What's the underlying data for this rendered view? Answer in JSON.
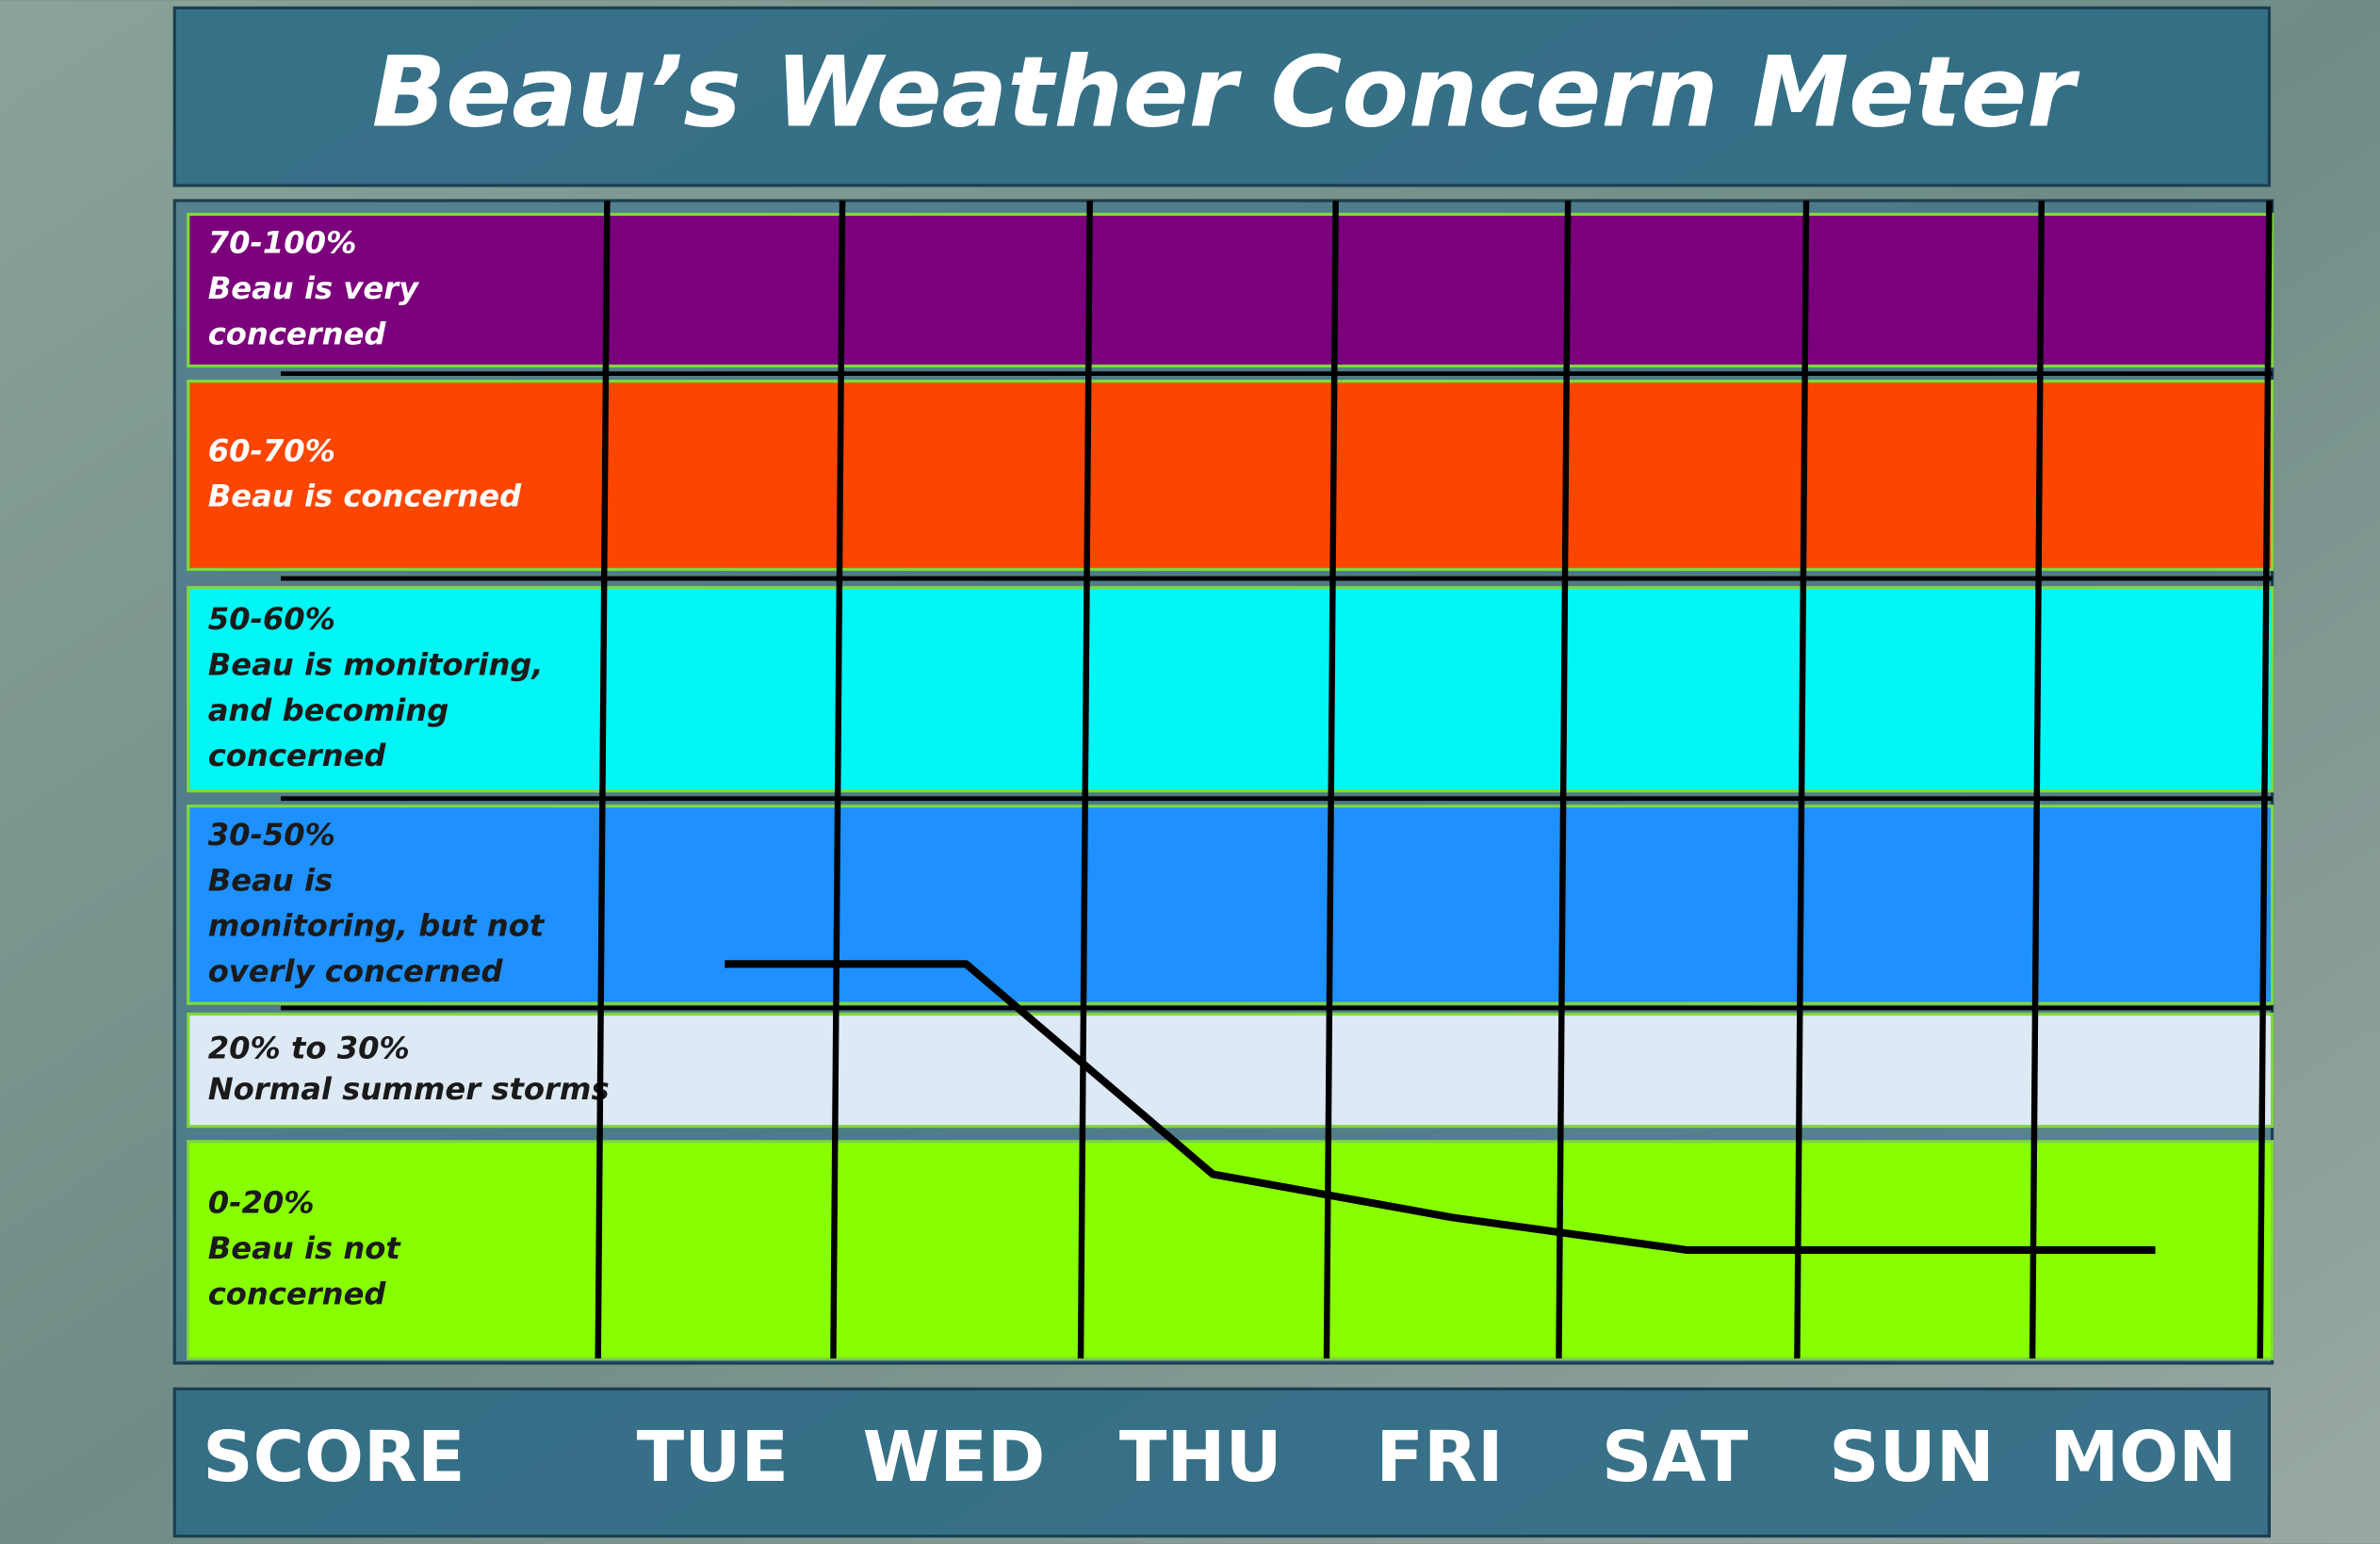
{
  "chart_data": {
    "type": "line",
    "title": "Beau’s Weather Concern Meter",
    "x_label": "SCORE",
    "categories": [
      "TUE",
      "WED",
      "THU",
      "FRI",
      "SAT",
      "SUN",
      "MON"
    ],
    "series": [
      {
        "color": "#000000",
        "values": [
          34,
          34,
          17,
          13,
          10,
          10,
          10
        ]
      }
    ],
    "bands": [
      {
        "range_label": "70-100%",
        "low": 70,
        "high": 100,
        "lines": [
          "Beau is very",
          "concerned"
        ],
        "color": "#7b007b",
        "text_color": "#ffffff"
      },
      {
        "range_label": "60-70%",
        "low": 60,
        "high": 70,
        "lines": [
          "Beau is concerned"
        ],
        "color": "#fc4600",
        "text_color": "#ffffff"
      },
      {
        "range_label": "50-60%",
        "low": 50,
        "high": 60,
        "lines": [
          "Beau is monitoring,",
          "and becoming",
          "concerned"
        ],
        "color": "#00f5f5",
        "text_color": "#1a1a1a"
      },
      {
        "range_label": "30-50%",
        "low": 30,
        "high": 50,
        "lines": [
          "Beau is",
          "monitoring, but  not",
          "overly  concerned"
        ],
        "color": "#1e90ff",
        "text_color": "#1a1a1a"
      },
      {
        "range_label": "20% to 30%",
        "low": 20,
        "high": 30,
        "lines": [
          "Normal summer storms"
        ],
        "color": "#dde9f5",
        "text_color": "#1a1a1a"
      },
      {
        "range_label": "0-20%",
        "low": 0,
        "high": 20,
        "lines": [
          "Beau is not",
          "concerned"
        ],
        "color": "#88ff00",
        "text_color": "#1a1a1a"
      }
    ]
  }
}
